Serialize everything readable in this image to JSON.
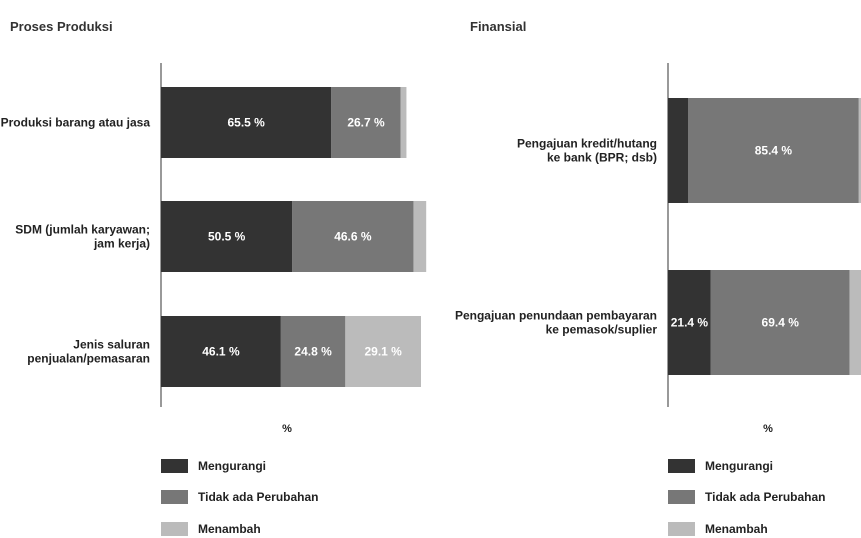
{
  "colors": {
    "Mengurangi": "#333333",
    "Tidak ada Perubahan": "#777777",
    "Menambah": "#bbbbbb",
    "axis": "#333333"
  },
  "chart_data": [
    {
      "type": "bar",
      "orientation": "horizontal",
      "stacked": true,
      "title": "Proses Produksi",
      "xlabel": "%",
      "ylabel": "",
      "xlim": [
        0,
        100
      ],
      "categories": [
        "Produksi barang atau jasa",
        "SDM (jumlah karyawan; jam kerja)",
        "Jenis saluran penjualan/pemasaran"
      ],
      "category_lines": [
        [
          "Produksi barang atau jasa"
        ],
        [
          "SDM (jumlah karyawan;",
          "jam kerja)"
        ],
        [
          "Jenis saluran",
          "penjualan/pemasaran"
        ]
      ],
      "series": [
        {
          "name": "Mengurangi",
          "values": [
            65.5,
            50.5,
            46.1
          ],
          "labels": [
            "65.5 %",
            "50.5 %",
            "46.1 %"
          ]
        },
        {
          "name": "Tidak ada Perubahan",
          "values": [
            26.7,
            46.6,
            24.8
          ],
          "labels": [
            "26.7 %",
            "46.6 %",
            "24.8 %"
          ]
        },
        {
          "name": "Menambah",
          "values": [
            2.2,
            4.9,
            29.1
          ],
          "labels": [
            "",
            "",
            "29.1 %"
          ]
        }
      ],
      "grid": false,
      "legend_position": "bottom-left"
    },
    {
      "type": "bar",
      "orientation": "horizontal",
      "stacked": true,
      "title": "Finansial",
      "xlabel": "%",
      "ylabel": "",
      "xlim": [
        0,
        100
      ],
      "categories": [
        "Pengajuan kredit/hutang ke bank (BPR; dsb)",
        "Pengajuan penundaan pembayaran ke pemasok/suplier"
      ],
      "category_lines": [
        [
          "Pengajuan kredit/hutang",
          "ke bank (BPR; dsb)"
        ],
        [
          "Pengajuan penundaan pembayaran",
          "ke pemasok/suplier"
        ]
      ],
      "series": [
        {
          "name": "Mengurangi",
          "values": [
            10.0,
            21.4
          ],
          "labels": [
            "",
            "21.4 %"
          ]
        },
        {
          "name": "Tidak ada Perubahan",
          "values": [
            85.4,
            69.4
          ],
          "labels": [
            "85.4 %",
            "69.4 %"
          ]
        },
        {
          "name": "Menambah",
          "values": [
            4.6,
            9.2
          ],
          "labels": [
            "",
            ""
          ]
        }
      ],
      "grid": false,
      "legend_position": "bottom-left"
    }
  ]
}
